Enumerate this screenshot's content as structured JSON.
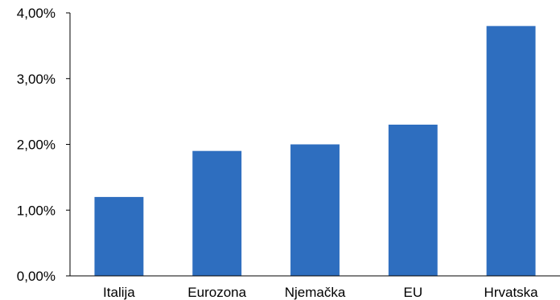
{
  "chart_data": {
    "type": "bar",
    "title": "",
    "xlabel": "",
    "ylabel": "",
    "categories": [
      "Italija",
      "Eurozona",
      "Njemačka",
      "EU",
      "Hrvatska"
    ],
    "values": [
      1.2,
      1.9,
      2.0,
      2.3,
      3.8
    ],
    "unit": "%",
    "ylim": [
      0,
      4
    ],
    "yticks": [
      0,
      1,
      2,
      3,
      4
    ],
    "ytick_labels": [
      "0,00%",
      "1,00%",
      "2,00%",
      "3,00%",
      "4,00%"
    ],
    "grid": false,
    "legend": "none",
    "bar_color": "#2E6EBF",
    "axis_color": "#000000"
  }
}
